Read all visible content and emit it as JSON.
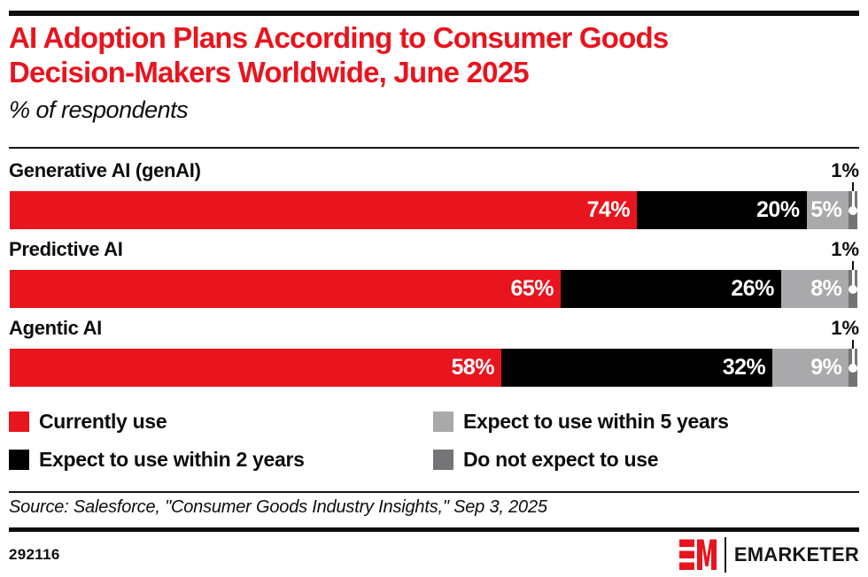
{
  "header": {
    "title_line1": "AI Adoption Plans According to Consumer Goods",
    "title_line2": "Decision-Makers Worldwide, June 2025",
    "subtitle": "% of respondents",
    "title_color": "#E8141E"
  },
  "chart_data": {
    "type": "bar",
    "orientation": "horizontal",
    "stacked": true,
    "title": "AI Adoption Plans According to Consumer Goods Decision-Makers Worldwide, June 2025",
    "subtitle": "% of respondents",
    "categories": [
      "Generative AI (genAI)",
      "Predictive AI",
      "Agentic AI"
    ],
    "series": [
      {
        "name": "Currently use",
        "color": "#E8141E",
        "values": [
          74,
          65,
          58
        ]
      },
      {
        "name": "Expect to use within 2 years",
        "color": "#000000",
        "values": [
          20,
          26,
          32
        ]
      },
      {
        "name": "Expect to use within 5 years",
        "color": "#A9A9AB",
        "values": [
          5,
          8,
          9
        ]
      },
      {
        "name": "Do not expect to use",
        "color": "#747477",
        "values": [
          1,
          1,
          1
        ]
      }
    ],
    "value_suffix": "%",
    "xlim": [
      0,
      100
    ],
    "legend_position": "bottom",
    "grid": false
  },
  "footer": {
    "source": "Source: Salesforce, \"Consumer Goods Industry Insights,\" Sep 3, 2025",
    "chart_id": "292116",
    "brand": "EMARKETER"
  }
}
